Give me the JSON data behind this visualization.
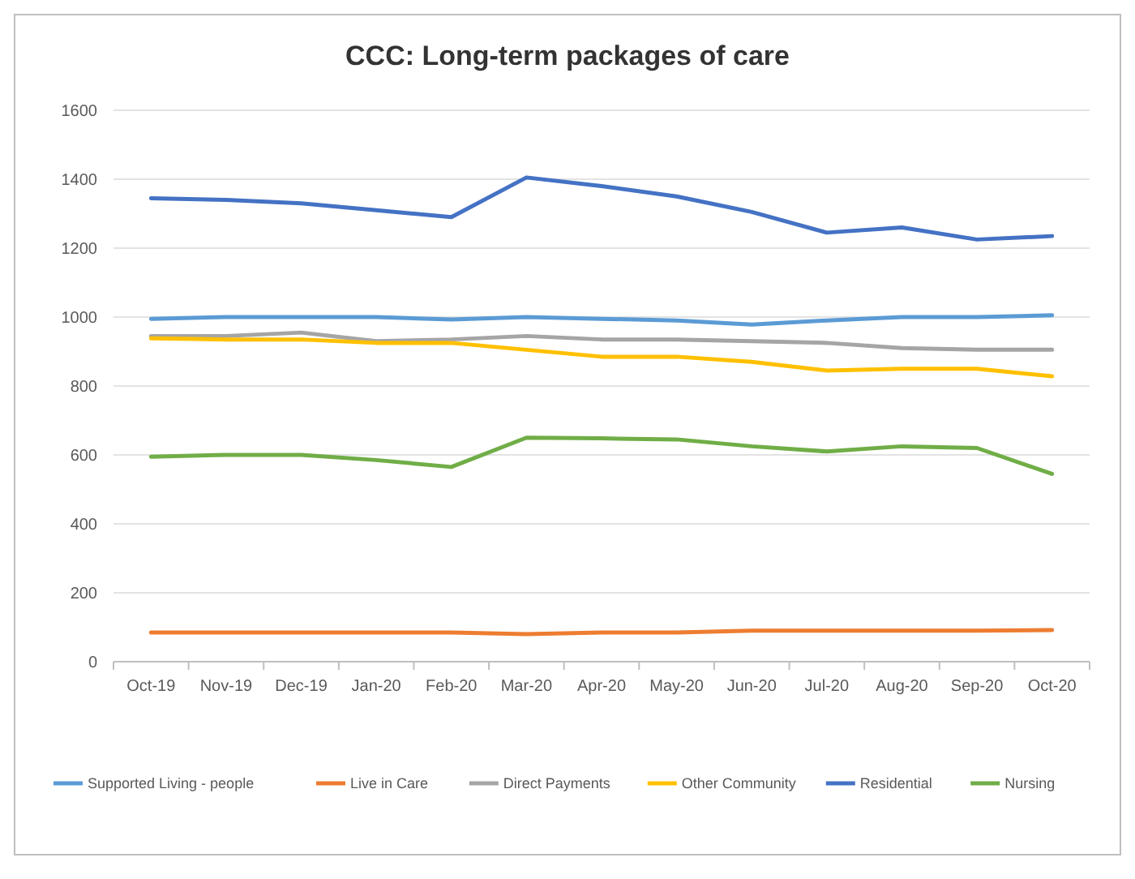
{
  "chart_data": {
    "type": "line",
    "title": "CCC: Long-term packages of care",
    "categories": [
      "Oct-19",
      "Nov-19",
      "Dec-19",
      "Jan-20",
      "Feb-20",
      "Mar-20",
      "Apr-20",
      "May-20",
      "Jun-20",
      "Jul-20",
      "Aug-20",
      "Sep-20",
      "Oct-20"
    ],
    "series": [
      {
        "name": "Supported Living - people",
        "color": "#5b9bd5",
        "values": [
          995,
          1000,
          1000,
          1000,
          993,
          1000,
          995,
          990,
          978,
          990,
          1000,
          1000,
          1005
        ]
      },
      {
        "name": "Live in Care",
        "color": "#ed7d31",
        "values": [
          85,
          85,
          85,
          85,
          85,
          80,
          85,
          85,
          90,
          90,
          90,
          90,
          92
        ]
      },
      {
        "name": "Direct Payments",
        "color": "#a5a5a5",
        "values": [
          945,
          945,
          955,
          930,
          935,
          945,
          935,
          935,
          930,
          925,
          910,
          905,
          905
        ]
      },
      {
        "name": "Other Community",
        "color": "#ffc000",
        "values": [
          938,
          935,
          935,
          925,
          925,
          905,
          885,
          885,
          870,
          845,
          850,
          850,
          828
        ]
      },
      {
        "name": "Residential",
        "color": "#4472c4",
        "values": [
          1345,
          1340,
          1330,
          1310,
          1290,
          1405,
          1380,
          1350,
          1305,
          1245,
          1260,
          1225,
          1235
        ]
      },
      {
        "name": "Nursing",
        "color": "#70ad47",
        "values": [
          595,
          600,
          600,
          585,
          565,
          650,
          648,
          645,
          625,
          610,
          625,
          620,
          545
        ]
      }
    ],
    "ylim": [
      0,
      1600
    ],
    "yticks": [
      0,
      200,
      400,
      600,
      800,
      1000,
      1200,
      1400,
      1600
    ],
    "grid": "y",
    "legend": "bottom",
    "marker": "none",
    "line_style": "solid"
  }
}
